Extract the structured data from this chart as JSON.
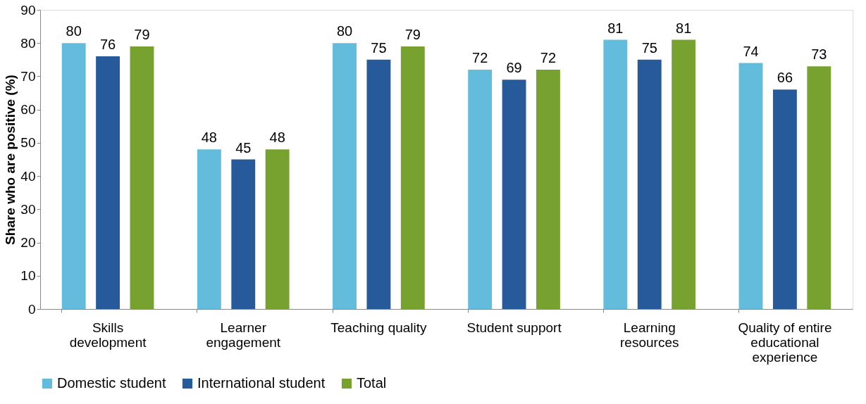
{
  "chart_data": {
    "type": "bar",
    "ylabel": "Share  who are positive (%)",
    "categories": [
      "Skills development",
      "Learner engagement",
      "Teaching quality",
      "Student support",
      "Learning resources",
      "Quality of entire educational experience"
    ],
    "series": [
      {
        "name": "Domestic student",
        "color": "#63bcdc",
        "values": [
          80,
          48,
          80,
          72,
          81,
          74
        ]
      },
      {
        "name": "International student",
        "color": "#265a9a",
        "values": [
          76,
          45,
          75,
          69,
          75,
          66
        ]
      },
      {
        "name": "Total",
        "color": "#78a22f",
        "values": [
          79,
          48,
          79,
          72,
          81,
          73
        ]
      }
    ],
    "ylim": [
      0,
      90
    ],
    "yticks": [
      0,
      10,
      20,
      30,
      40,
      50,
      60,
      70,
      80,
      90
    ],
    "grid": false,
    "legend": "bottom",
    "data_labels": true
  }
}
